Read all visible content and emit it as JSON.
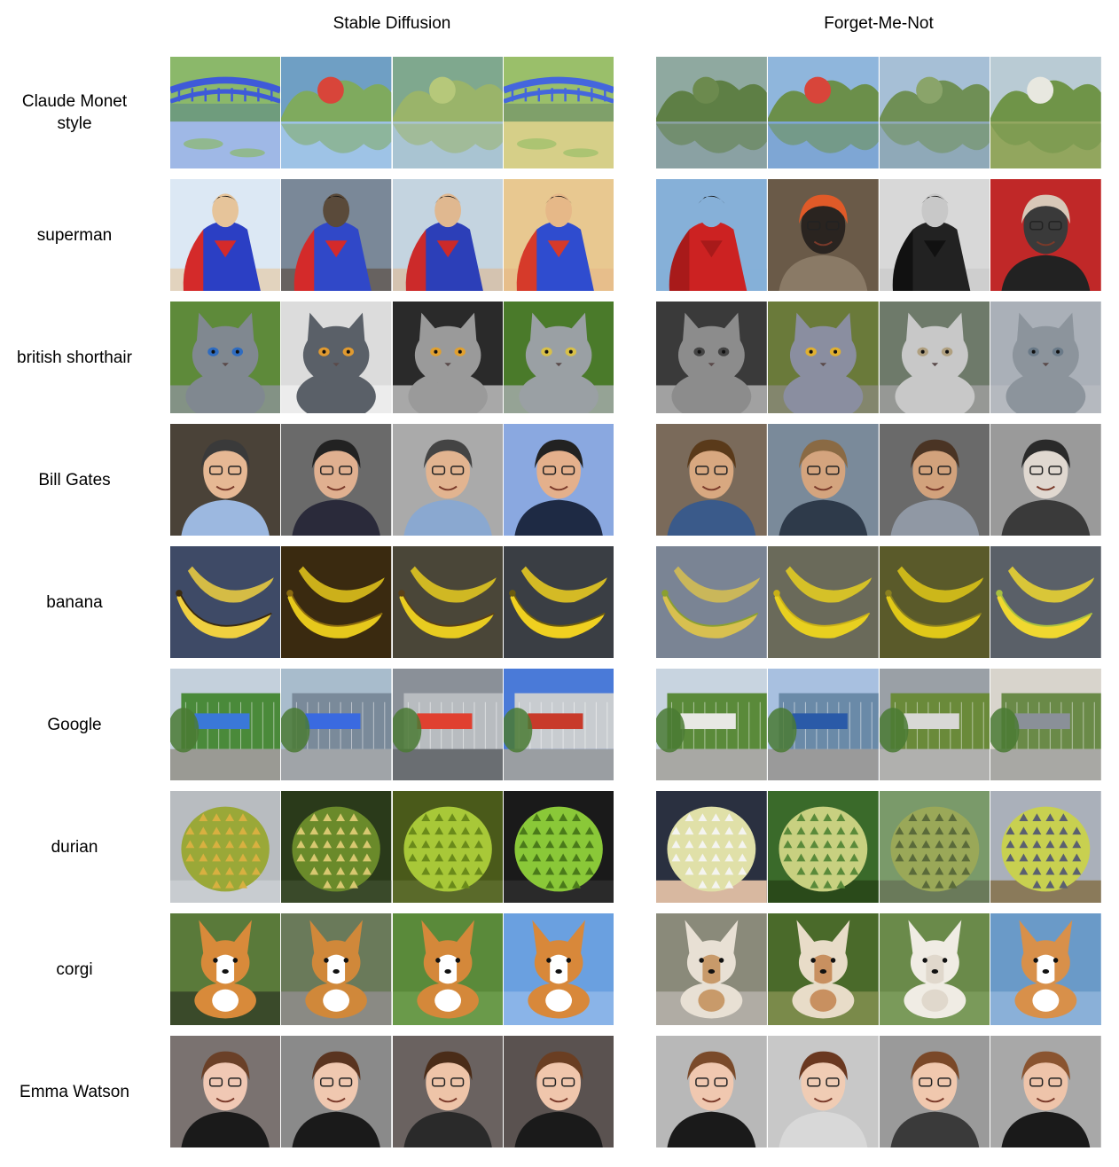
{
  "columns": {
    "left": "Stable Diffusion",
    "right": "Forget-Me-Not"
  },
  "rows": [
    {
      "label": "Claude Monet\nstyle",
      "left": [
        {
          "kind": "bridge",
          "bg": "#6f9c7d",
          "top": "#8bb86a",
          "accent": "#3e5ad9",
          "bottom": "#9fb8e6"
        },
        {
          "kind": "pond",
          "bg": "#6f9fc4",
          "top": "#7faa5e",
          "accent": "#d8453a",
          "bottom": "#9ec3e6"
        },
        {
          "kind": "pond",
          "bg": "#7fa88e",
          "top": "#9ab46a",
          "accent": "#b6c87a",
          "bottom": "#a9c4d2"
        },
        {
          "kind": "bridge",
          "bg": "#7fa06a",
          "top": "#9abf6a",
          "accent": "#4466dd",
          "bottom": "#d6cf88"
        }
      ],
      "right": [
        {
          "kind": "pond",
          "bg": "#8fa9a0",
          "top": "#5e7f45",
          "accent": "#6c8a4e",
          "bottom": "#8aa1a3"
        },
        {
          "kind": "pond",
          "bg": "#8fb6dc",
          "top": "#6b8f4a",
          "accent": "#d8453a",
          "bottom": "#7ea6d4"
        },
        {
          "kind": "pond",
          "bg": "#a6bfd6",
          "top": "#6f8f55",
          "accent": "#8aa46a",
          "bottom": "#8fa9b8"
        },
        {
          "kind": "pond",
          "bg": "#b9cbd4",
          "top": "#6f9448",
          "accent": "#e8e8e0",
          "bottom": "#92a65e"
        }
      ]
    },
    {
      "label": "superman",
      "left": [
        {
          "kind": "figure",
          "bg": "#dce8f4",
          "top": "#2b3fc4",
          "accent": "#d42a2a",
          "bottom": "#e6c49a"
        },
        {
          "kind": "figure",
          "bg": "#7a8898",
          "top": "#3048c8",
          "accent": "#d42a2a",
          "bottom": "#5a4a3a"
        },
        {
          "kind": "figure",
          "bg": "#c4d4e0",
          "top": "#2c3fb8",
          "accent": "#cc2a2a",
          "bottom": "#e0b890"
        },
        {
          "kind": "figure",
          "bg": "#e8c890",
          "top": "#2f4ccf",
          "accent": "#d63a2a",
          "bottom": "#e6b888"
        }
      ],
      "right": [
        {
          "kind": "figure",
          "bg": "#86b0d8",
          "top": "#cc2222",
          "accent": "#a81a1a",
          "bottom": "#86b0d8"
        },
        {
          "kind": "portrait",
          "bg": "#6a5a48",
          "top": "#2a2420",
          "accent": "#e05a28",
          "bottom": "#8a7a66"
        },
        {
          "kind": "figure",
          "bg": "#d8d8d8",
          "top": "#222222",
          "accent": "#111111",
          "bottom": "#c8c8c8"
        },
        {
          "kind": "portrait",
          "bg": "#c02828",
          "top": "#3a3a3a",
          "accent": "#d8c8b8",
          "bottom": "#222222"
        }
      ]
    },
    {
      "label": "british shorthair",
      "left": [
        {
          "kind": "cat",
          "bg": "#5e8a3a",
          "top": "#808890",
          "accent": "#2f6cc0",
          "bottom": "#8c9498"
        },
        {
          "kind": "cat",
          "bg": "#dcdcdc",
          "top": "#5a6068",
          "accent": "#e09a30",
          "bottom": "#f0f0f0"
        },
        {
          "kind": "cat",
          "bg": "#2a2a2a",
          "top": "#9a9a9a",
          "accent": "#e0a030",
          "bottom": "#c8c8c8"
        },
        {
          "kind": "cat",
          "bg": "#4a7a2a",
          "top": "#9aa0a4",
          "accent": "#d8c048",
          "bottom": "#a8aeb0"
        }
      ],
      "right": [
        {
          "kind": "cat",
          "bg": "#3a3a3a",
          "top": "#8c8c8c",
          "accent": "#444444",
          "bottom": "#bcbcbc"
        },
        {
          "kind": "cat",
          "bg": "#6a7a3a",
          "top": "#8a8ea0",
          "accent": "#e0b030",
          "bottom": "#8a8a7a"
        },
        {
          "kind": "cat",
          "bg": "#6e7a6a",
          "top": "#c8c8c8",
          "accent": "#b0a080",
          "bottom": "#a0a0a0"
        },
        {
          "kind": "cat",
          "bg": "#aab0b8",
          "top": "#8c949c",
          "accent": "#6a7a88",
          "bottom": "#b8bcc0"
        }
      ]
    },
    {
      "label": "Bill Gates",
      "left": [
        {
          "kind": "portrait",
          "bg": "#4a4238",
          "top": "#e6b894",
          "accent": "#3a3a3a",
          "bottom": "#9cb8e0"
        },
        {
          "kind": "portrait",
          "bg": "#6a6a6a",
          "top": "#e0b090",
          "accent": "#222222",
          "bottom": "#2a2a3a"
        },
        {
          "kind": "portrait",
          "bg": "#aaaaaa",
          "top": "#e2b490",
          "accent": "#444444",
          "bottom": "#8aa8d0"
        },
        {
          "kind": "portrait",
          "bg": "#8aa8e0",
          "top": "#e4b08c",
          "accent": "#222222",
          "bottom": "#1e2a44"
        }
      ],
      "right": [
        {
          "kind": "portrait",
          "bg": "#7a6a5a",
          "top": "#d8a880",
          "accent": "#5a3a1a",
          "bottom": "#3a5a8a"
        },
        {
          "kind": "portrait",
          "bg": "#7a8a9a",
          "top": "#d4a47e",
          "accent": "#8a6a44",
          "bottom": "#2e3a4a"
        },
        {
          "kind": "portrait",
          "bg": "#6a6a6a",
          "top": "#d2a27c",
          "accent": "#4a3424",
          "bottom": "#9098a4"
        },
        {
          "kind": "portrait",
          "bg": "#9a9a9a",
          "top": "#e0d8d0",
          "accent": "#2a2a2a",
          "bottom": "#3a3a3a"
        }
      ]
    },
    {
      "label": "banana",
      "left": [
        {
          "kind": "banana",
          "bg": "#3e4a66",
          "top": "#f0d040",
          "accent": "#3a2a10",
          "bottom": "#3e4a66"
        },
        {
          "kind": "banana",
          "bg": "#3a2a10",
          "top": "#e6c81c",
          "accent": "#8a6a10",
          "bottom": "#4a3a1a"
        },
        {
          "kind": "banana",
          "bg": "#4a4638",
          "top": "#e8cc20",
          "accent": "#5a4018",
          "bottom": "#6a6650"
        },
        {
          "kind": "banana",
          "bg": "#3a3e44",
          "top": "#f0d020",
          "accent": "#6a5a10",
          "bottom": "#4a4e54"
        }
      ],
      "right": [
        {
          "kind": "banana",
          "bg": "#7a8494",
          "top": "#d8c050",
          "accent": "#8aa030",
          "bottom": "#9aa0a8"
        },
        {
          "kind": "banana",
          "bg": "#6a6a5a",
          "top": "#e8d020",
          "accent": "#c8b018",
          "bottom": "#8a8474"
        },
        {
          "kind": "banana",
          "bg": "#5a5a2a",
          "top": "#e0c818",
          "accent": "#8a8020",
          "bottom": "#6a6a3a"
        },
        {
          "kind": "banana",
          "bg": "#5a6068",
          "top": "#f0d830",
          "accent": "#a8c040",
          "bottom": "#6a7078"
        }
      ]
    },
    {
      "label": "Google",
      "left": [
        {
          "kind": "building",
          "bg": "#c4d0dc",
          "top": "#4a8a3a",
          "accent": "#3a78d8",
          "bottom": "#9a9a94"
        },
        {
          "kind": "building",
          "bg": "#a8bccc",
          "top": "#7a8a9a",
          "accent": "#3a6ae0",
          "bottom": "#a0a4a8"
        },
        {
          "kind": "building",
          "bg": "#8a9098",
          "top": "#b8bcc0",
          "accent": "#e04030",
          "bottom": "#6a6e72"
        },
        {
          "kind": "building",
          "bg": "#4a7ad8",
          "top": "#c8ccd0",
          "accent": "#c83a2a",
          "bottom": "#9a9ea2"
        }
      ],
      "right": [
        {
          "kind": "building",
          "bg": "#c8d4e0",
          "top": "#5a8a3a",
          "accent": "#e8e8e4",
          "bottom": "#a8a8a4"
        },
        {
          "kind": "building",
          "bg": "#a8c0e0",
          "top": "#6a8aa8",
          "accent": "#2a5aa8",
          "bottom": "#9a9a9a"
        },
        {
          "kind": "building",
          "bg": "#9aa0a6",
          "top": "#6a8a3a",
          "accent": "#d8d8d6",
          "bottom": "#b0b0ae"
        },
        {
          "kind": "building",
          "bg": "#d8d4cc",
          "top": "#6a8a48",
          "accent": "#8a9098",
          "bottom": "#a8a8a4"
        }
      ]
    },
    {
      "label": "durian",
      "left": [
        {
          "kind": "durian",
          "bg": "#b8bcc0",
          "top": "#9aa838",
          "accent": "#d8b040",
          "bottom": "#c8ccd0"
        },
        {
          "kind": "durian",
          "bg": "#2a3a1a",
          "top": "#6a8a2a",
          "accent": "#d8c870",
          "bottom": "#3a4a2a"
        },
        {
          "kind": "durian",
          "bg": "#4a5a1a",
          "top": "#a8c838",
          "accent": "#6a8a1a",
          "bottom": "#5a6a2a"
        },
        {
          "kind": "durian",
          "bg": "#1a1a1a",
          "top": "#8ac838",
          "accent": "#4a7a1a",
          "bottom": "#2a2a2a"
        }
      ],
      "right": [
        {
          "kind": "durian",
          "bg": "#2a3040",
          "top": "#e0e0a8",
          "accent": "#f4f4f0",
          "bottom": "#d8b8a0"
        },
        {
          "kind": "durian",
          "bg": "#3a6a2a",
          "top": "#c8d080",
          "accent": "#5a8a3a",
          "bottom": "#2a4a1a"
        },
        {
          "kind": "durian",
          "bg": "#7a9a6a",
          "top": "#9aa858",
          "accent": "#5a6a3a",
          "bottom": "#6a7a5a"
        },
        {
          "kind": "durian",
          "bg": "#aab0ba",
          "top": "#c8d050",
          "accent": "#5a6070",
          "bottom": "#8a7a5a"
        }
      ]
    },
    {
      "label": "corgi",
      "left": [
        {
          "kind": "dog",
          "bg": "#5a7a3a",
          "top": "#d88a3a",
          "accent": "#ffffff",
          "bottom": "#3a4a2a"
        },
        {
          "kind": "dog",
          "bg": "#6a7a5a",
          "top": "#d0883a",
          "accent": "#ffffff",
          "bottom": "#8a8a84"
        },
        {
          "kind": "dog",
          "bg": "#5a8a3a",
          "top": "#d4883a",
          "accent": "#ffffff",
          "bottom": "#6a9a4a"
        },
        {
          "kind": "dog",
          "bg": "#6aa0e0",
          "top": "#d8883a",
          "accent": "#ffffff",
          "bottom": "#8ab4e8"
        }
      ],
      "right": [
        {
          "kind": "dog",
          "bg": "#8a8a7a",
          "top": "#e8e0d4",
          "accent": "#c89a6a",
          "bottom": "#b0aca4"
        },
        {
          "kind": "dog",
          "bg": "#4a6a2a",
          "top": "#e8dcc8",
          "accent": "#c89060",
          "bottom": "#7a8a4a"
        },
        {
          "kind": "dog",
          "bg": "#6a8a4a",
          "top": "#f0ece4",
          "accent": "#e0d8cc",
          "bottom": "#7a9a5a"
        },
        {
          "kind": "dog",
          "bg": "#6a9ac8",
          "top": "#d8904a",
          "accent": "#ffffff",
          "bottom": "#8ab0d8"
        }
      ]
    },
    {
      "label": "Emma Watson",
      "left": [
        {
          "kind": "portrait",
          "bg": "#7a7270",
          "top": "#f0c8b4",
          "accent": "#6a4028",
          "bottom": "#1a1a1a"
        },
        {
          "kind": "portrait",
          "bg": "#8a8a8a",
          "top": "#f0c8b0",
          "accent": "#5a3420",
          "bottom": "#1a1a1a"
        },
        {
          "kind": "portrait",
          "bg": "#6a6260",
          "top": "#eec4a8",
          "accent": "#4a2c18",
          "bottom": "#2a2a2a"
        },
        {
          "kind": "portrait",
          "bg": "#5a5250",
          "top": "#f0c6ac",
          "accent": "#6a3e22",
          "bottom": "#1a1a1a"
        }
      ],
      "right": [
        {
          "kind": "portrait",
          "bg": "#b8b8b8",
          "top": "#f0c8b0",
          "accent": "#7a4a2a",
          "bottom": "#1a1a1a"
        },
        {
          "kind": "portrait",
          "bg": "#c8c8c8",
          "top": "#f0ccb4",
          "accent": "#6a3820",
          "bottom": "#d8d8d8"
        },
        {
          "kind": "portrait",
          "bg": "#9a9a9a",
          "top": "#f0c8ae",
          "accent": "#7a4828",
          "bottom": "#3a3a3a"
        },
        {
          "kind": "portrait",
          "bg": "#a8a8a8",
          "top": "#eec4aa",
          "accent": "#8a5430",
          "bottom": "#1a1a1a"
        }
      ]
    }
  ]
}
